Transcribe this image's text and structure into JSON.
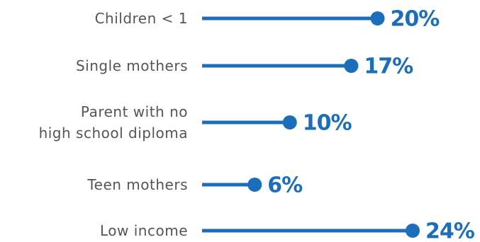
{
  "chart_data": {
    "type": "lollipop",
    "orientation": "horizontal",
    "categories": [
      [
        "Children < 1"
      ],
      [
        "Single mothers"
      ],
      [
        "Parent with no",
        "high school diploma"
      ],
      [
        "Teen mothers"
      ],
      [
        "Low income"
      ]
    ],
    "values": [
      20,
      17,
      10,
      6,
      24
    ],
    "value_labels": [
      "20%",
      "17%",
      "10%",
      "6%",
      "24%"
    ],
    "unit": "%",
    "xlim": [
      0,
      24
    ],
    "grid": false,
    "legend": "none",
    "colors": {
      "accent": "#1b6fba",
      "label_text": "#555555"
    }
  }
}
